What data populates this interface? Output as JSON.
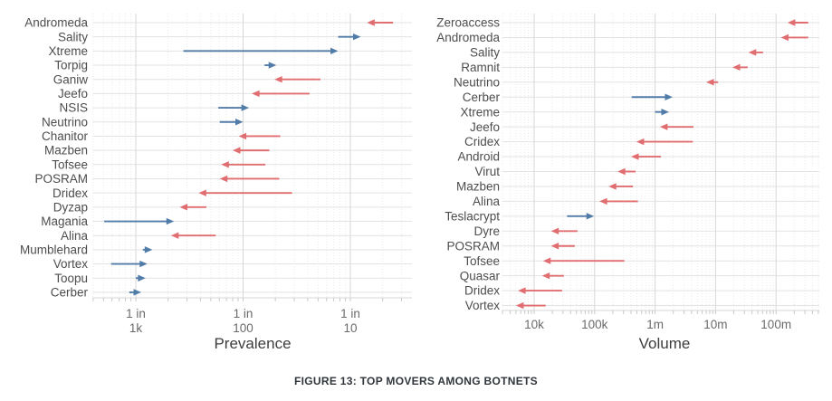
{
  "caption": "FIGURE 13: TOP MOVERS AMONG BOTNETS",
  "colors": {
    "increase_arrow": "#527ca8",
    "decrease_arrow": "#e06d70",
    "grid_major": "#d7d7d7",
    "grid_minor": "#ebebeb",
    "row_line": "#e3e3e3",
    "tick_mark": "#c9c9c9",
    "row_label": "#4d4d4d",
    "tick_label": "#6a6a6a",
    "axis_title": "#3d3d3d",
    "caption": "#30363c"
  },
  "chart_data": [
    {
      "type": "arrow-dumbbell",
      "title": "Prevalence",
      "legend_position": "none",
      "grid": "on",
      "x_axis": {
        "label": "Prevalence",
        "scale": "log",
        "unit": "1 in N (denominator of prevalence rate)",
        "range_one_in": [
          2500,
          2.7
        ],
        "ticks": [
          {
            "label_top": "1 in",
            "label_bottom": "1k",
            "value": 1000
          },
          {
            "label_top": "1 in",
            "label_bottom": "100",
            "value": 100
          },
          {
            "label_top": "1 in",
            "label_bottom": "10",
            "value": 10
          }
        ]
      },
      "arrow_semantics": "from = previous value (tail), to = current value (arrowhead); trend increase = blue right arrow, decrease = red left arrow",
      "rows": [
        {
          "label": "Andromeda",
          "trend": "decrease",
          "from": 4,
          "to": 7
        },
        {
          "label": "Sality",
          "trend": "increase",
          "from": 13,
          "to": 8
        },
        {
          "label": "Xtreme",
          "trend": "increase",
          "from": 360,
          "to": 13
        },
        {
          "label": "Torpig",
          "trend": "increase",
          "from": 63,
          "to": 49
        },
        {
          "label": "Ganiw",
          "trend": "decrease",
          "from": 19,
          "to": 51
        },
        {
          "label": "Jeefo",
          "trend": "decrease",
          "from": 24,
          "to": 83
        },
        {
          "label": "NSIS",
          "trend": "increase",
          "from": 170,
          "to": 88
        },
        {
          "label": "Neutrino",
          "trend": "increase",
          "from": 165,
          "to": 100
        },
        {
          "label": "Chanitor",
          "trend": "decrease",
          "from": 45,
          "to": 110
        },
        {
          "label": "Mazben",
          "trend": "decrease",
          "from": 57,
          "to": 125
        },
        {
          "label": "Tofsee",
          "trend": "decrease",
          "from": 62,
          "to": 160
        },
        {
          "label": "POSRAM",
          "trend": "decrease",
          "from": 46,
          "to": 165
        },
        {
          "label": "Dridex",
          "trend": "decrease",
          "from": 35,
          "to": 260
        },
        {
          "label": "Dyzap",
          "trend": "decrease",
          "from": 220,
          "to": 390
        },
        {
          "label": "Magania",
          "trend": "increase",
          "from": 1970,
          "to": 440
        },
        {
          "label": "Alina",
          "trend": "decrease",
          "from": 180,
          "to": 470
        },
        {
          "label": "Mumblehard",
          "trend": "increase",
          "from": 860,
          "to": 700
        },
        {
          "label": "Vortex",
          "trend": "increase",
          "from": 1700,
          "to": 780
        },
        {
          "label": "Toopu",
          "trend": "increase",
          "from": 1000,
          "to": 810
        },
        {
          "label": "Cerber",
          "trend": "increase",
          "from": 1150,
          "to": 890
        }
      ]
    },
    {
      "type": "arrow-dumbbell",
      "title": "Volume",
      "legend_position": "none",
      "grid": "on",
      "x_axis": {
        "label": "Volume",
        "scale": "log",
        "unit": "count",
        "range": [
          4000,
          500000000
        ],
        "ticks": [
          {
            "label": "10k",
            "value": 10000
          },
          {
            "label": "100k",
            "value": 100000
          },
          {
            "label": "1m",
            "value": 1000000
          },
          {
            "label": "10m",
            "value": 10000000
          },
          {
            "label": "100m",
            "value": 100000000
          }
        ]
      },
      "arrow_semantics": "from = previous value (tail), to = current value (arrowhead); trend increase = blue right arrow, decrease = red left arrow",
      "rows": [
        {
          "label": "Zeroaccess",
          "trend": "decrease",
          "from": 340000000,
          "to": 155000000
        },
        {
          "label": "Andromeda",
          "trend": "decrease",
          "from": 340000000,
          "to": 120000000
        },
        {
          "label": "Sality",
          "trend": "decrease",
          "from": 61000000,
          "to": 35000000
        },
        {
          "label": "Ramnit",
          "trend": "decrease",
          "from": 34000000,
          "to": 19000000
        },
        {
          "label": "Neutrino",
          "trend": "decrease",
          "from": 11000000,
          "to": 7000000
        },
        {
          "label": "Cerber",
          "trend": "increase",
          "from": 410000,
          "to": 1950000
        },
        {
          "label": "Xtreme",
          "trend": "increase",
          "from": 1000000,
          "to": 1700000
        },
        {
          "label": "Jeefo",
          "trend": "decrease",
          "from": 4300000,
          "to": 1200000
        },
        {
          "label": "Cridex",
          "trend": "decrease",
          "from": 4200000,
          "to": 490000
        },
        {
          "label": "Android",
          "trend": "decrease",
          "from": 1250000,
          "to": 400000
        },
        {
          "label": "Virut",
          "trend": "decrease",
          "from": 475000,
          "to": 240000
        },
        {
          "label": "Mazben",
          "trend": "decrease",
          "from": 430000,
          "to": 170000
        },
        {
          "label": "Alina",
          "trend": "decrease",
          "from": 520000,
          "to": 120000
        },
        {
          "label": "Teslacrypt",
          "trend": "increase",
          "from": 35000,
          "to": 98000
        },
        {
          "label": "Dyre",
          "trend": "decrease",
          "from": 52000,
          "to": 19000
        },
        {
          "label": "POSRAM",
          "trend": "decrease",
          "from": 47000,
          "to": 19000
        },
        {
          "label": "Tofsee",
          "trend": "decrease",
          "from": 310000,
          "to": 14000
        },
        {
          "label": "Quasar",
          "trend": "decrease",
          "from": 31000,
          "to": 13500
        },
        {
          "label": "Dridex",
          "trend": "decrease",
          "from": 29000,
          "to": 5400
        },
        {
          "label": "Vortex",
          "trend": "decrease",
          "from": 15500,
          "to": 5000
        }
      ]
    }
  ]
}
